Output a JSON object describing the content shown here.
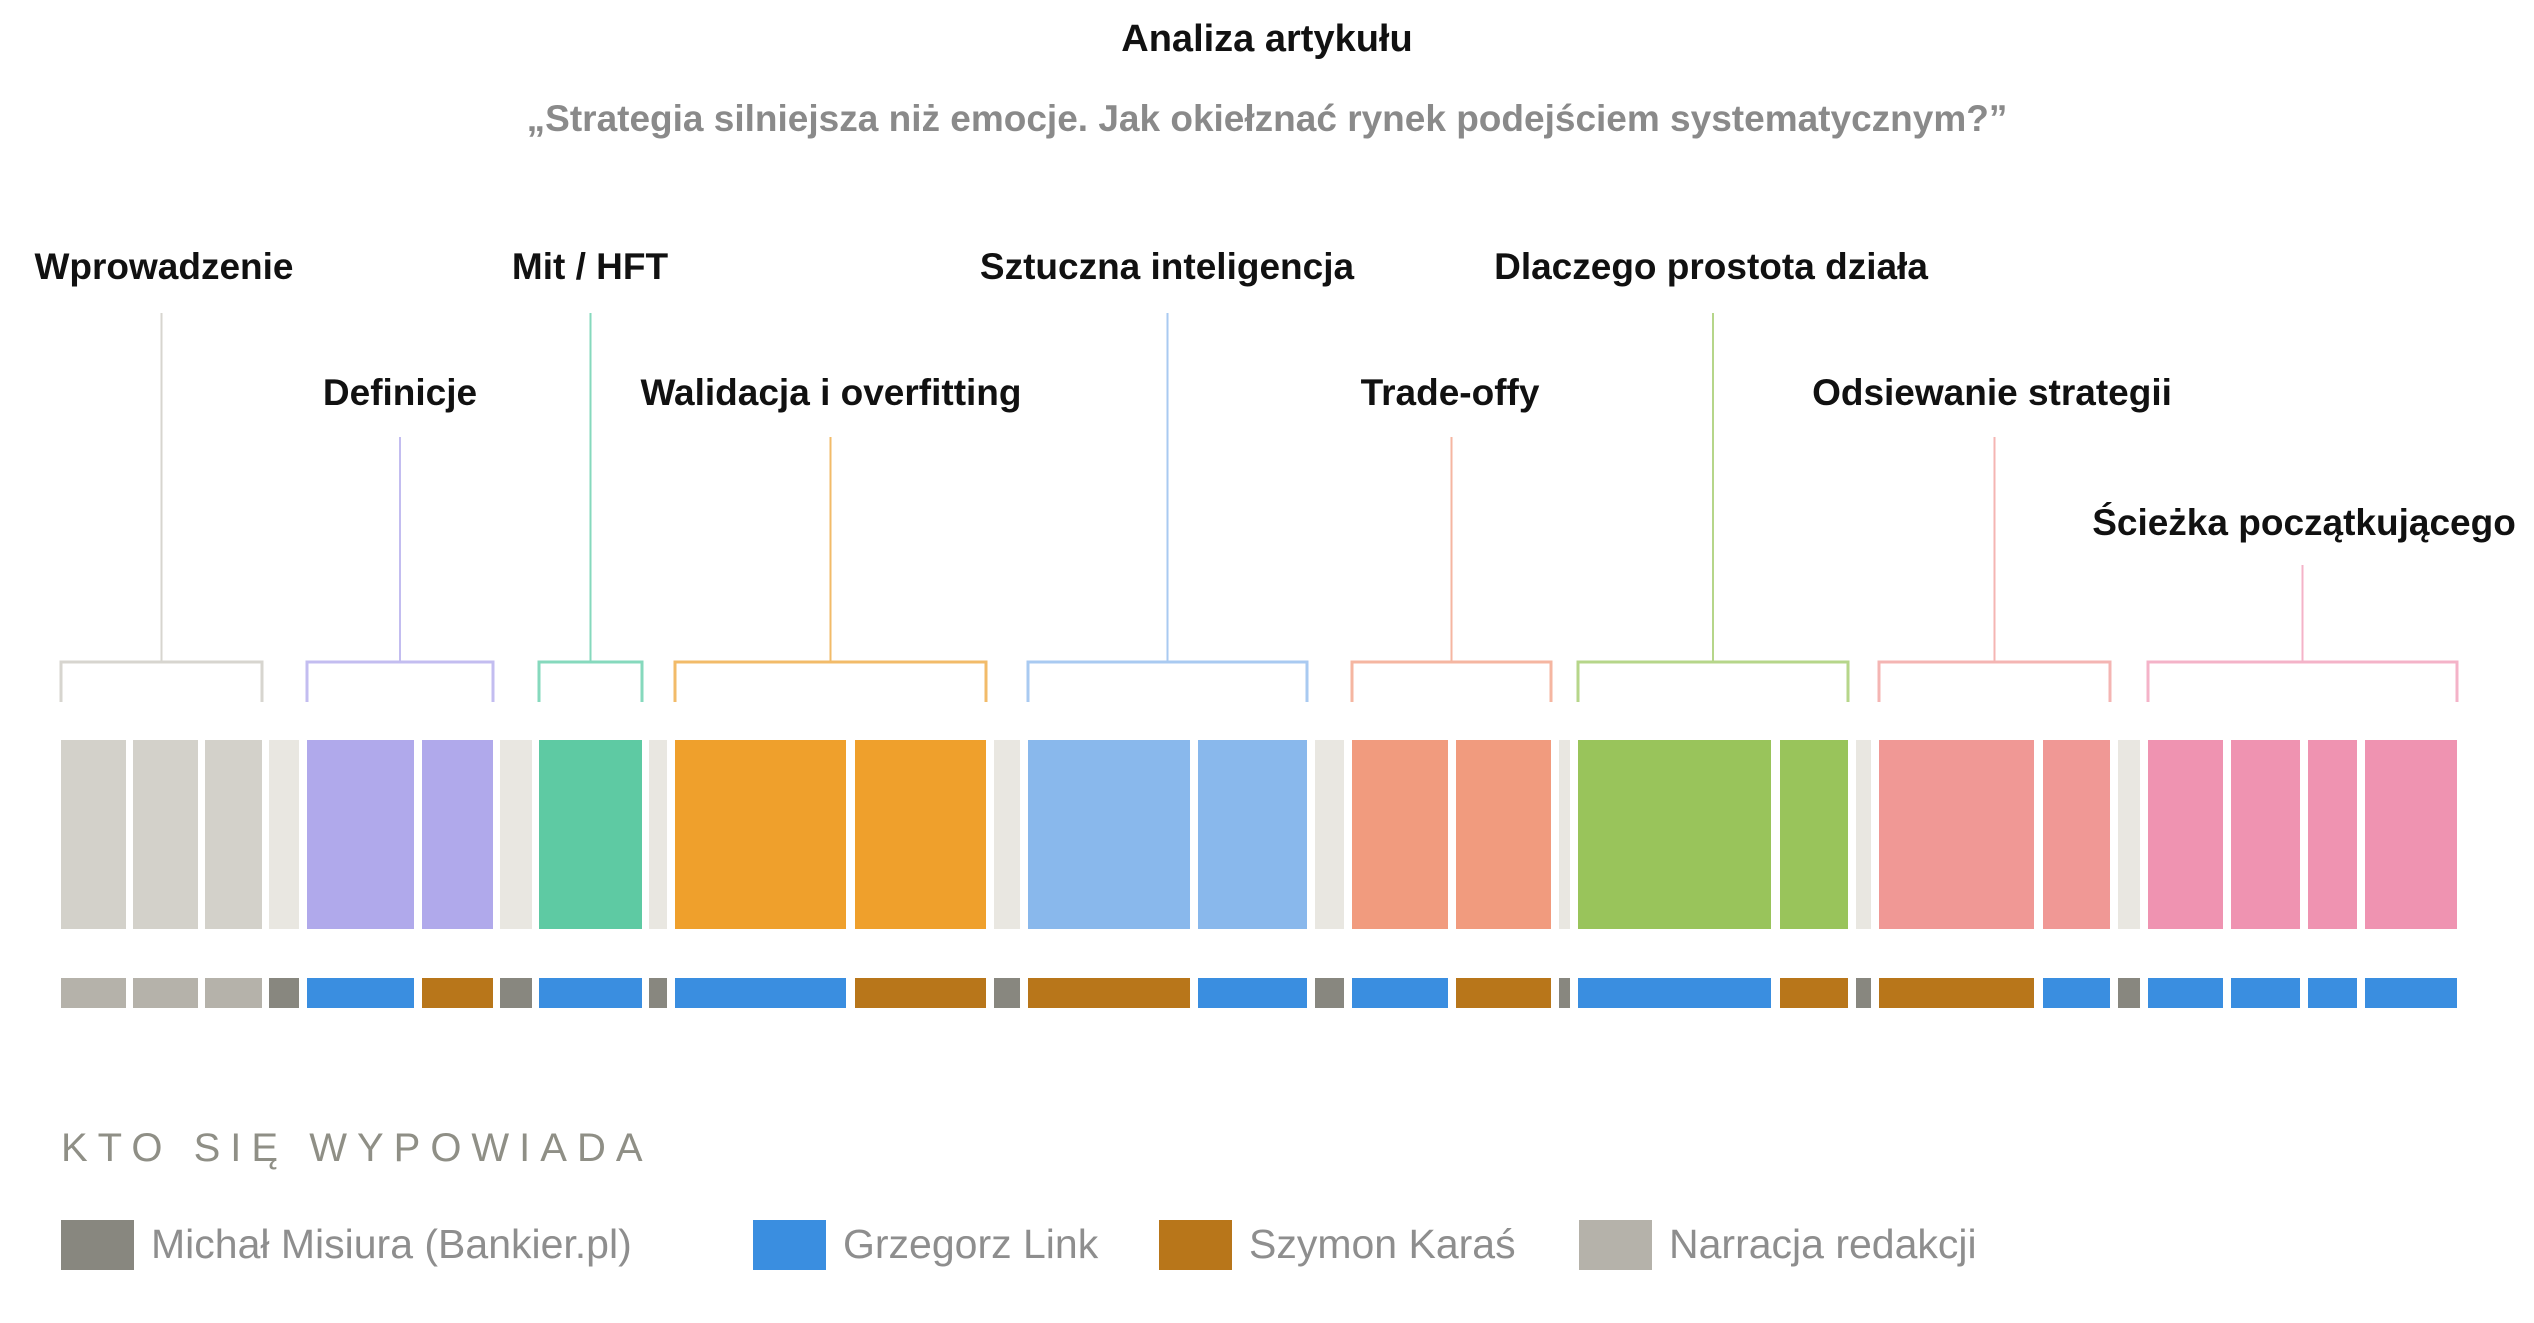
{
  "title": "Analiza artykułu",
  "subtitle": "„Strategia silniejsza niż emocje. Jak okiełznać rynek podejściem systematycznym?”",
  "colors": {
    "gap_block": "#e9e7e1",
    "narration": "#b5b2aa",
    "misiura": "#88877f",
    "link": "#3a8ee0",
    "karas": "#b8761a"
  },
  "sections": [
    {
      "label": "Wprowadzenie",
      "color": "#d3d1ca",
      "bracket": "#d7d5cf"
    },
    {
      "label": "Definicje",
      "color": "#b0a9eb",
      "bracket": "#c3bdf0"
    },
    {
      "label": "Mit / HFT",
      "color": "#5ecaa3",
      "bracket": "#86d9bd"
    },
    {
      "label": "Walidacja i overfitting",
      "color": "#efa02c",
      "bracket": "#f2bb69"
    },
    {
      "label": "Sztuczna inteligencja",
      "color": "#89b8ec",
      "bracket": "#a9caf1"
    },
    {
      "label": "Trade-offy",
      "color": "#f19b7e",
      "bracket": "#f5b6a1"
    },
    {
      "label": "Dlaczego prostota działa",
      "color": "#99c45b",
      "bracket": "#b6d68a"
    },
    {
      "label": "Odsiewanie strategii",
      "color": "#f09895",
      "bracket": "#f4b5b3"
    },
    {
      "label": "Ścieżka początkującego",
      "color": "#ef93b1",
      "bracket": "#f4b3c8"
    }
  ],
  "legend": {
    "heading": "KTO SIĘ WYPOWIADA",
    "items": [
      {
        "label": "Michał Misiura (Bankier.pl)",
        "color": "#88877f"
      },
      {
        "label": "Grzegorz Link",
        "color": "#3a8ee0"
      },
      {
        "label": "Szymon Karaś",
        "color": "#b8761a"
      },
      {
        "label": "Narracja redakcji",
        "color": "#b5b2aa"
      }
    ]
  }
}
